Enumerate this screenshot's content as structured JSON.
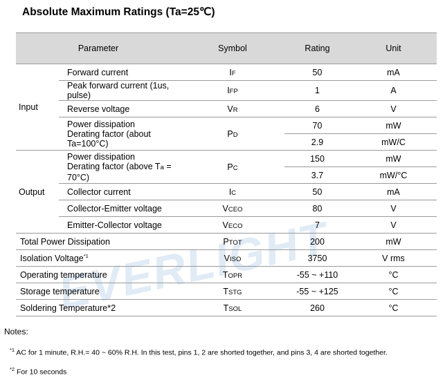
{
  "title": "Absolute Maximum Ratings (Ta=25℃)",
  "watermark": "EVERLIGHT",
  "header": {
    "parameter": "Parameter",
    "symbol": "Symbol",
    "rating": "Rating",
    "unit": "Unit"
  },
  "groups": {
    "input": "Input",
    "output": "Output"
  },
  "rows": {
    "forward_current": {
      "param": "Forward current",
      "sym": "I",
      "sub": "F",
      "rating": "50",
      "unit": "mA"
    },
    "peak_forward": {
      "param": "Peak forward current (1us, pulse)",
      "sym": "I",
      "sub": "FP",
      "rating": "1",
      "unit": "A"
    },
    "reverse_voltage": {
      "param": "Reverse voltage",
      "sym": "V",
      "sub": "R",
      "rating": "6",
      "unit": "V"
    },
    "in_power": {
      "param1": "Power dissipation",
      "param2": "Derating factor (about Ta=100°C)",
      "sym": "P",
      "sub": "D",
      "rating1": "70",
      "unit1": "mW",
      "rating2": "2.9",
      "unit2": "mW/C"
    },
    "out_power": {
      "param1": "Power dissipation",
      "param2a": "Derating factor (above T",
      "param2sub": "a",
      "param2b": " = 70°C)",
      "sym": "P",
      "sub": "C",
      "rating1": "150",
      "unit1": "mW",
      "rating2": "3.7",
      "unit2": "mW/°C"
    },
    "collector_current": {
      "param": "Collector current",
      "sym": "I",
      "sub": "C",
      "rating": "50",
      "unit": "mA"
    },
    "ce_voltage": {
      "param": "Collector-Emitter voltage",
      "sym": "V",
      "sub": "CEO",
      "rating": "80",
      "unit": "V"
    },
    "ec_voltage": {
      "param": "Emitter-Collector voltage",
      "sym": "V",
      "sub": "ECO",
      "rating": "7",
      "unit": "V"
    },
    "total_power": {
      "param": "Total Power Dissipation",
      "sym": "P",
      "sub": "TOT",
      "rating": "200",
      "unit": "mW"
    },
    "isolation": {
      "param": "Isolation Voltage",
      "sup": "*1",
      "sym": "V",
      "sub": "ISO",
      "rating": "3750",
      "unit": "V rms"
    },
    "operating_temp": {
      "param": "Operating temperature",
      "sym": "T",
      "sub": "OPR",
      "rating": "-55 ~ +110",
      "unit": "°C"
    },
    "storage_temp": {
      "param": "Storage temperature",
      "sym": "T",
      "sub": "STG",
      "rating": "-55 ~ +125",
      "unit": "°C"
    },
    "soldering_temp": {
      "param": "Soldering Temperature*2",
      "sym": "T",
      "sub": "SOL",
      "rating": "260",
      "unit": "°C"
    }
  },
  "notes": {
    "heading": "Notes:",
    "n1_mark": "*1",
    "n1_text": " AC for 1 minute, R.H.= 40 ~ 60% R.H. In this test, pins 1, 2 are shorted together, and pins 3, 4 are shorted together.",
    "n2_mark": "*2",
    "n2_text": " For 10 seconds"
  }
}
